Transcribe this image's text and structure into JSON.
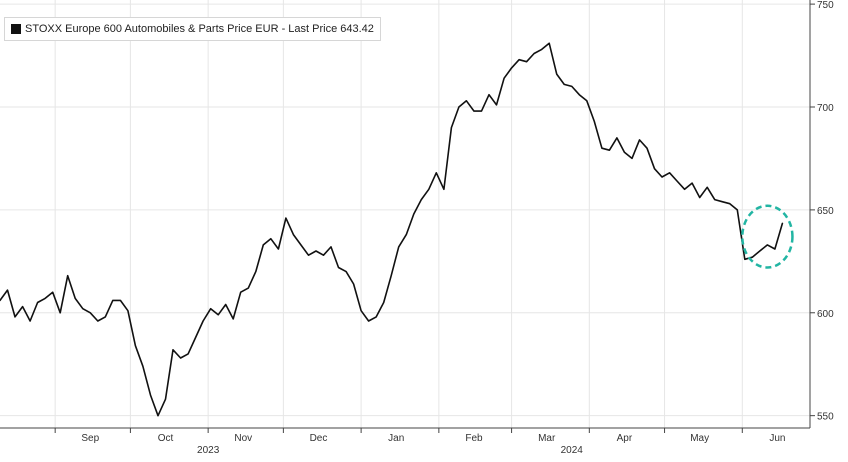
{
  "chart_data": {
    "type": "line",
    "legend": {
      "label": "STOXX Europe 600 Automobiles & Parts Price EUR - Last Price 643.42",
      "placement": "top-left"
    },
    "colors": {
      "line": "#111111",
      "grid": "#e6e6e6",
      "axis": "#444444",
      "annotation": "#22b5a3"
    },
    "grid": true,
    "y_axis": {
      "side": "right",
      "ylim": [
        544,
        752
      ],
      "ticks": [
        550,
        600,
        650,
        700,
        750
      ]
    },
    "x_axis": {
      "xlim": [
        "2023-08-10",
        "2024-06-28"
      ],
      "month_labels": [
        {
          "label": "Sep",
          "date": "2023-09-15"
        },
        {
          "label": "Oct",
          "date": "2023-10-15"
        },
        {
          "label": "Nov",
          "date": "2023-11-15"
        },
        {
          "label": "Dec",
          "date": "2023-12-15"
        },
        {
          "label": "Jan",
          "date": "2024-01-15"
        },
        {
          "label": "Feb",
          "date": "2024-02-15"
        },
        {
          "label": "Mar",
          "date": "2024-03-15"
        },
        {
          "label": "Apr",
          "date": "2024-04-15"
        },
        {
          "label": "May",
          "date": "2024-05-15"
        },
        {
          "label": "Jun",
          "date": "2024-06-15"
        }
      ],
      "year_labels": [
        {
          "label": "2023",
          "date": "2023-11-01"
        },
        {
          "label": "2024",
          "date": "2024-03-25"
        }
      ]
    },
    "series": [
      {
        "x": [
          "2023-08-10",
          "2023-08-13",
          "2023-08-16",
          "2023-08-19",
          "2023-08-22",
          "2023-08-25",
          "2023-08-28",
          "2023-08-31",
          "2023-09-03",
          "2023-09-06",
          "2023-09-09",
          "2023-09-12",
          "2023-09-15",
          "2023-09-18",
          "2023-09-21",
          "2023-09-24",
          "2023-09-27",
          "2023-09-30",
          "2023-10-03",
          "2023-10-06",
          "2023-10-09",
          "2023-10-12",
          "2023-10-15",
          "2023-10-18",
          "2023-10-21",
          "2023-10-24",
          "2023-10-27",
          "2023-10-30",
          "2023-11-02",
          "2023-11-05",
          "2023-11-08",
          "2023-11-11",
          "2023-11-14",
          "2023-11-17",
          "2023-11-20",
          "2023-11-23",
          "2023-11-26",
          "2023-11-29",
          "2023-12-02",
          "2023-12-05",
          "2023-12-08",
          "2023-12-11",
          "2023-12-14",
          "2023-12-17",
          "2023-12-20",
          "2023-12-23",
          "2023-12-26",
          "2023-12-29",
          "2024-01-01",
          "2024-01-04",
          "2024-01-07",
          "2024-01-10",
          "2024-01-13",
          "2024-01-16",
          "2024-01-19",
          "2024-01-22",
          "2024-01-25",
          "2024-01-28",
          "2024-01-31",
          "2024-02-03",
          "2024-02-06",
          "2024-02-09",
          "2024-02-12",
          "2024-02-15",
          "2024-02-18",
          "2024-02-21",
          "2024-02-24",
          "2024-02-27",
          "2024-03-01",
          "2024-03-04",
          "2024-03-07",
          "2024-03-10",
          "2024-03-13",
          "2024-03-16",
          "2024-03-19",
          "2024-03-22",
          "2024-03-25",
          "2024-03-28",
          "2024-03-31",
          "2024-04-03",
          "2024-04-06",
          "2024-04-09",
          "2024-04-12",
          "2024-04-15",
          "2024-04-18",
          "2024-04-21",
          "2024-04-24",
          "2024-04-27",
          "2024-04-30",
          "2024-05-03",
          "2024-05-06",
          "2024-05-09",
          "2024-05-12",
          "2024-05-15",
          "2024-05-18",
          "2024-05-21",
          "2024-05-24",
          "2024-05-27",
          "2024-05-30",
          "2024-06-02",
          "2024-06-05",
          "2024-06-08",
          "2024-06-11",
          "2024-06-14",
          "2024-06-17"
        ],
        "y": [
          606,
          611,
          598,
          603,
          596,
          605,
          607,
          610,
          600,
          618,
          607,
          602,
          600,
          596,
          598,
          606,
          606,
          601,
          584,
          574,
          560,
          550,
          558,
          582,
          578,
          580,
          588,
          596,
          602,
          599,
          604,
          597,
          610,
          612,
          620,
          633,
          636,
          631,
          646,
          638,
          633,
          628,
          630,
          628,
          632,
          622,
          620,
          614,
          601,
          596,
          598,
          605,
          618,
          632,
          638,
          648,
          655,
          660,
          668,
          660,
          690,
          700,
          703,
          698,
          698,
          706,
          701,
          714,
          719,
          723,
          722,
          726,
          728,
          731,
          716,
          711,
          710,
          706,
          703,
          693,
          680,
          679,
          685,
          678,
          675,
          684,
          680,
          670,
          666,
          668,
          664,
          660,
          663,
          656,
          661,
          655,
          654,
          653,
          650,
          626,
          627,
          630,
          633,
          631,
          643.42
        ]
      }
    ],
    "annotations": [
      {
        "type": "circle",
        "center": [
          "2024-06-11",
          637
        ],
        "radius_days": 10,
        "radius_value": 15
      }
    ]
  }
}
